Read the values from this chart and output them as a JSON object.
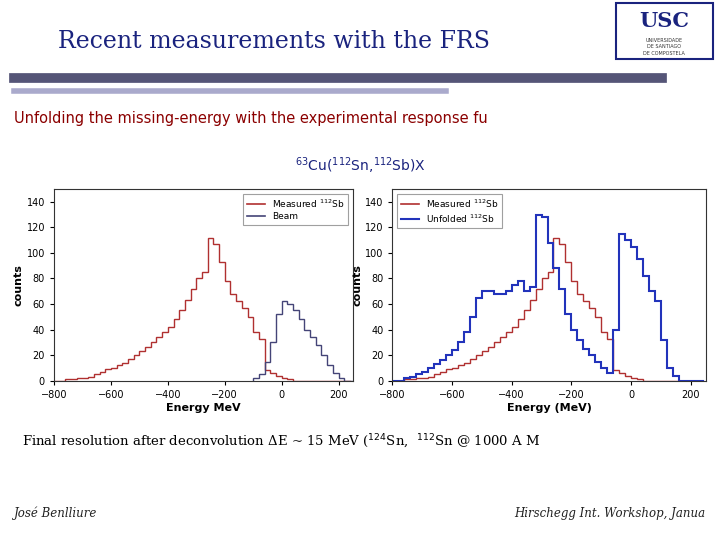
{
  "title": "Recent measurements with the FRS",
  "subtitle": "Unfolding the missing-energy with the experimental response fu",
  "reaction_label": "$^{63}$Cu($^{112}$Sn,$^{112}$Sb)X",
  "bottom_text": "Final resolution after deconvolution ΔE ~ 15 MeV ($^{124}$Sn,  $^{112}$Sn @ 1000 A M",
  "footer_left": "José Benlliure",
  "footer_right": "Hirschegg Int. Workshop, Janua",
  "bg_color": "#ffffff",
  "title_color": "#1a237e",
  "subtitle_color": "#8b0000",
  "reaction_color": "#1a237e",
  "bottom_text_color": "#000000",
  "bar1_color": "#8b3a3a",
  "bar1_dark": "#555577",
  "usc_box_color": "#1a237e",
  "plot1": {
    "xlabel": "Energy MeV",
    "ylabel": "counts",
    "xlim": [
      -800,
      250
    ],
    "ylim": [
      0,
      150
    ],
    "yticks": [
      0,
      20,
      40,
      60,
      80,
      100,
      120,
      140
    ],
    "xticks": [
      -800,
      -600,
      -400,
      -200,
      0,
      200
    ],
    "red_bins": [
      -800,
      -780,
      -760,
      -740,
      -720,
      -700,
      -680,
      -660,
      -640,
      -620,
      -600,
      -580,
      -560,
      -540,
      -520,
      -500,
      -480,
      -460,
      -440,
      -420,
      -400,
      -380,
      -360,
      -340,
      -320,
      -300,
      -280,
      -260,
      -240,
      -220,
      -200,
      -180,
      -160,
      -140,
      -120,
      -100,
      -80,
      -60,
      -40,
      -20,
      0,
      20,
      40,
      60,
      80,
      100,
      120,
      140,
      160,
      180,
      200,
      220,
      240
    ],
    "red_vals": [
      0,
      0,
      1,
      1,
      2,
      2,
      3,
      5,
      7,
      9,
      10,
      12,
      14,
      17,
      20,
      23,
      26,
      30,
      34,
      38,
      42,
      48,
      55,
      63,
      72,
      80,
      85,
      112,
      107,
      93,
      78,
      68,
      62,
      57,
      50,
      38,
      33,
      8,
      6,
      4,
      2,
      1,
      0,
      0,
      0,
      0,
      0,
      0,
      0,
      0,
      0,
      0
    ],
    "blue_bins": [
      -100,
      -80,
      -60,
      -40,
      -20,
      0,
      20,
      40,
      60,
      80,
      100,
      120,
      140,
      160,
      180,
      200,
      220,
      240
    ],
    "blue_vals": [
      2,
      5,
      15,
      30,
      52,
      62,
      60,
      55,
      48,
      40,
      34,
      28,
      20,
      12,
      6,
      2,
      0,
      0
    ],
    "legend1": "Measured $^{112}$Sb",
    "legend2": "Beam",
    "red_color": "#b03030",
    "blue_color": "#444477"
  },
  "plot2": {
    "xlabel": "Energy (MeV)",
    "ylabel": "counts",
    "xlim": [
      -800,
      250
    ],
    "ylim": [
      0,
      150
    ],
    "yticks": [
      0,
      20,
      40,
      60,
      80,
      100,
      120,
      140
    ],
    "xticks": [
      -800,
      -600,
      -400,
      -200,
      0,
      200
    ],
    "red_bins": [
      -800,
      -780,
      -760,
      -740,
      -720,
      -700,
      -680,
      -660,
      -640,
      -620,
      -600,
      -580,
      -560,
      -540,
      -520,
      -500,
      -480,
      -460,
      -440,
      -420,
      -400,
      -380,
      -360,
      -340,
      -320,
      -300,
      -280,
      -260,
      -240,
      -220,
      -200,
      -180,
      -160,
      -140,
      -120,
      -100,
      -80,
      -60,
      -40,
      -20,
      0,
      20,
      40,
      60,
      80,
      100,
      120,
      140,
      160,
      180,
      200,
      220,
      240
    ],
    "red_vals": [
      0,
      0,
      1,
      1,
      2,
      2,
      3,
      5,
      7,
      9,
      10,
      12,
      14,
      17,
      20,
      23,
      26,
      30,
      34,
      38,
      42,
      48,
      55,
      63,
      72,
      80,
      85,
      112,
      107,
      93,
      78,
      68,
      62,
      57,
      50,
      38,
      33,
      8,
      6,
      4,
      2,
      1,
      0,
      0,
      0,
      0,
      0,
      0,
      0,
      0,
      0,
      0
    ],
    "blue_bins": [
      -800,
      -780,
      -760,
      -740,
      -720,
      -700,
      -680,
      -660,
      -640,
      -620,
      -600,
      -580,
      -560,
      -540,
      -520,
      -500,
      -480,
      -460,
      -440,
      -420,
      -400,
      -380,
      -360,
      -340,
      -320,
      -300,
      -280,
      -260,
      -240,
      -220,
      -200,
      -180,
      -160,
      -140,
      -120,
      -100,
      -80,
      -60,
      -40,
      -20,
      0,
      20,
      40,
      60,
      80,
      100,
      120,
      140,
      160,
      180,
      200,
      220,
      240
    ],
    "blue_vals": [
      0,
      0,
      2,
      3,
      5,
      7,
      10,
      13,
      16,
      20,
      24,
      30,
      38,
      50,
      65,
      70,
      70,
      68,
      68,
      70,
      75,
      78,
      70,
      73,
      130,
      128,
      108,
      88,
      72,
      52,
      40,
      32,
      25,
      20,
      15,
      10,
      6,
      40,
      115,
      110,
      105,
      95,
      82,
      70,
      62,
      32,
      10,
      4,
      0,
      0,
      0,
      0
    ],
    "legend1": "Measured $^{112}$Sb",
    "legend2": "Unfolded $^{112}$Sb",
    "red_color": "#b03030",
    "blue_color": "#2233bb"
  }
}
